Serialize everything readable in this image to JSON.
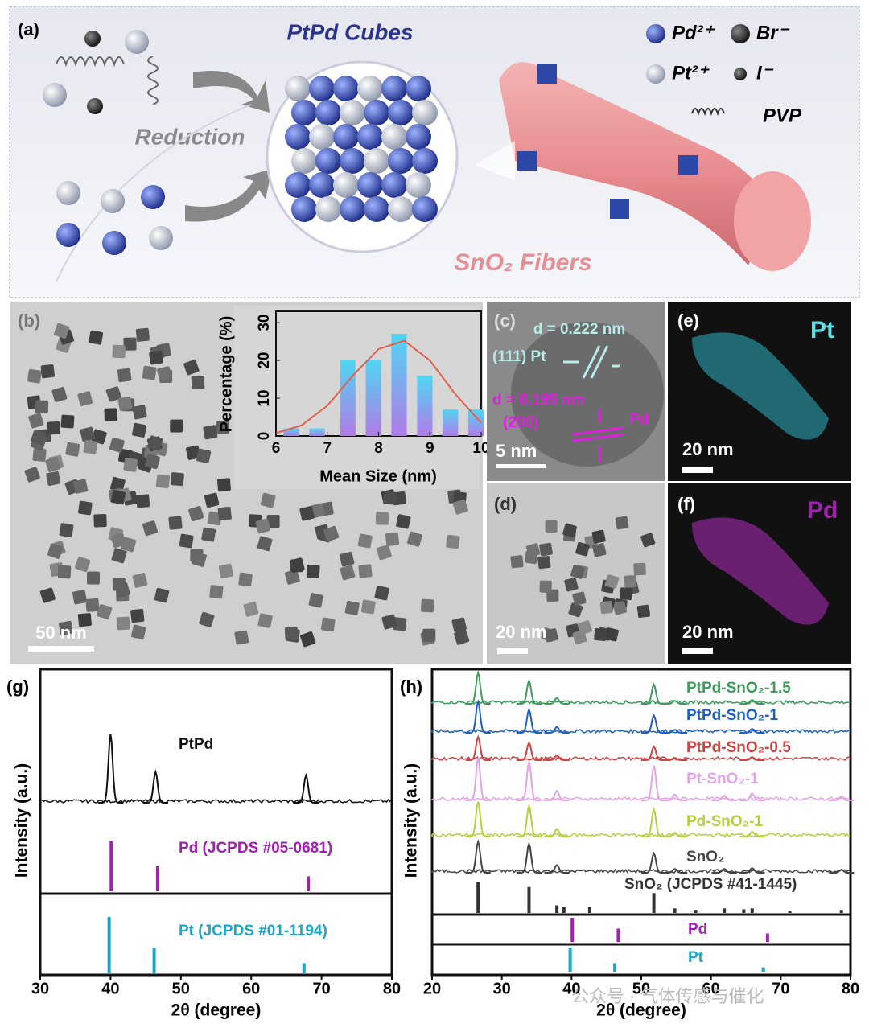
{
  "panel_a": {
    "label": "(a)",
    "title": "PtPd Cubes",
    "process": "Reduction",
    "fiber": "SnO₂ Fibers",
    "legend": [
      "Pd²⁺",
      "Br⁻",
      "Pt²⁺",
      "I⁻",
      "PVP"
    ]
  },
  "panel_b": {
    "label": "(b)",
    "scale_bar": "50 nm",
    "inset": {
      "type": "bar",
      "x_label": "Mean Size (nm)",
      "y_label": "Percentage (%)",
      "x": [
        6.3,
        6.8,
        7.4,
        7.9,
        8.4,
        8.9,
        9.4,
        9.9
      ],
      "values": [
        2,
        2,
        20,
        20,
        27,
        16,
        7,
        7
      ],
      "gradient": [
        "#4fd6f2",
        "#b27ae8"
      ],
      "fit": {
        "x": [
          6,
          6.5,
          7,
          7.5,
          8,
          8.5,
          9,
          9.5,
          10
        ],
        "values": [
          0.8,
          2.8,
          8,
          16,
          23,
          25.2,
          20,
          11,
          3.5
        ],
        "color": "#e0604a"
      },
      "xlim": [
        6,
        10
      ],
      "xticks": [
        6,
        7,
        8,
        9,
        10
      ],
      "ylim": [
        0,
        33
      ],
      "yticks": [
        0,
        10,
        20,
        30
      ]
    }
  },
  "panel_c": {
    "label": "(c)",
    "d1": "d = 0.222 nm",
    "plane1": "(111) Pt",
    "d2": "d = 0.195 nm",
    "plane2": "(200)",
    "element2": "Pd",
    "scale_bar": "5 nm"
  },
  "panel_d": {
    "label": "(d)",
    "scale_bar": "20 nm"
  },
  "panel_e": {
    "label": "(e)",
    "element": "Pt",
    "scale_bar": "20 nm"
  },
  "panel_f": {
    "label": "(f)",
    "element": "Pd",
    "scale_bar": "20 nm"
  },
  "chart_data": [
    {
      "type": "xrd",
      "label": "(g)",
      "x_label": "2θ (degree)",
      "y_label": "Intensity (a.u.)",
      "xlim": [
        30,
        80
      ],
      "xticks": [
        30,
        40,
        50,
        60,
        70,
        80
      ],
      "series": [
        {
          "name": "PtPd",
          "color": "#111111",
          "x": [
            40.0,
            46.4,
            67.8
          ],
          "values": [
            1,
            0.45,
            0.4
          ]
        }
      ],
      "references": [
        {
          "name": "Pd (JCPDS #05-0681)",
          "color": "#a020b0",
          "x": [
            40.1,
            46.7,
            68.1
          ],
          "values": [
            1,
            0.5,
            0.3
          ]
        },
        {
          "name": "Pt (JCPDS #01-1194)",
          "color": "#1aa6c4",
          "x": [
            39.8,
            46.2,
            67.5
          ],
          "values": [
            1,
            0.45,
            0.18
          ]
        }
      ]
    },
    {
      "type": "xrd",
      "label": "(h)",
      "x_label": "2θ (degree)",
      "y_label": "Intensity (a.u.)",
      "xlim": [
        20,
        80
      ],
      "xticks": [
        20,
        30,
        40,
        50,
        60,
        70,
        80
      ],
      "series": [
        {
          "name": "PtPd-SnO₂-1.5",
          "color": "#3f9a5c",
          "x": [
            26.6,
            33.9,
            37.9,
            51.8,
            54.8,
            65.9
          ],
          "values": [
            0.8,
            0.6,
            0.15,
            0.5,
            0.08,
            0.1
          ]
        },
        {
          "name": "PtPd-SnO₂-1",
          "color": "#1f5fbf",
          "x": [
            26.6,
            33.9,
            37.9,
            51.8,
            54.8,
            65.9
          ],
          "values": [
            0.8,
            0.6,
            0.15,
            0.45,
            0.08,
            0.1
          ]
        },
        {
          "name": "PtPd-SnO₂-0.5",
          "color": "#d04242",
          "x": [
            26.6,
            33.9,
            37.9,
            51.8,
            54.8,
            65.9
          ],
          "values": [
            0.6,
            0.45,
            0.12,
            0.35,
            0.06,
            0.08
          ]
        },
        {
          "name": "Pt-SnO₂-1",
          "color": "#e5a3e5",
          "x": [
            26.6,
            33.9,
            37.9,
            51.8,
            54.8,
            61.9,
            65.9,
            78.7
          ],
          "values": [
            1.1,
            1,
            0.25,
            0.9,
            0.15,
            0.12,
            0.18,
            0.1
          ]
        },
        {
          "name": "Pd-SnO₂-1",
          "color": "#b9cf3e",
          "x": [
            26.6,
            33.9,
            37.9,
            51.8,
            54.8,
            65.9
          ],
          "values": [
            0.9,
            0.8,
            0.2,
            0.7,
            0.1,
            0.12
          ]
        },
        {
          "name": "SnO₂",
          "color": "#444444",
          "x": [
            26.6,
            33.9,
            37.9,
            51.8,
            54.8,
            61.9,
            65.9,
            78.7
          ],
          "values": [
            0.8,
            0.75,
            0.2,
            0.5,
            0.1,
            0.1,
            0.12,
            0.08
          ]
        }
      ],
      "references": [
        {
          "name": "SnO₂ (JCPDS #41-1445)",
          "color": "#333333",
          "x": [
            26.6,
            33.9,
            37.9,
            38.9,
            42.6,
            51.8,
            54.8,
            57.8,
            61.9,
            64.7,
            65.9,
            71.3,
            78.7
          ],
          "values": [
            1,
            0.85,
            0.25,
            0.2,
            0.2,
            0.65,
            0.15,
            0.1,
            0.15,
            0.12,
            0.15,
            0.08,
            0.1
          ]
        },
        {
          "name": "Pd",
          "color": "#a020b0",
          "x": [
            40.1,
            46.7,
            68.1
          ],
          "values": [
            1,
            0.55,
            0.35
          ]
        },
        {
          "name": "Pt",
          "color": "#1aa6c4",
          "x": [
            39.8,
            46.2,
            67.5
          ],
          "values": [
            1,
            0.35,
            0.18
          ]
        }
      ]
    }
  ],
  "watermark": "公众号 · 气体传感与催化"
}
